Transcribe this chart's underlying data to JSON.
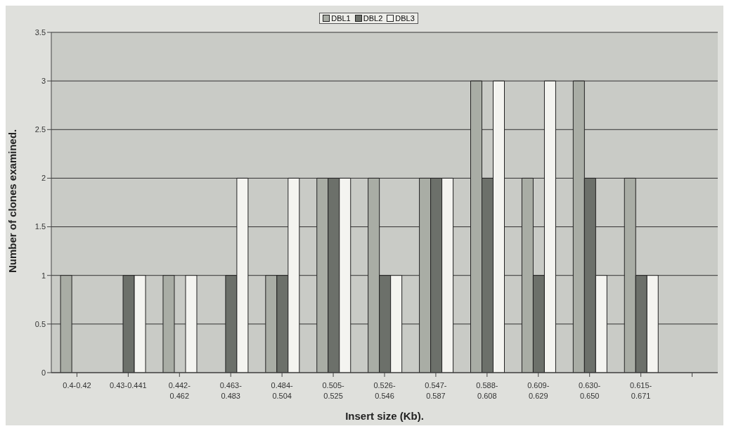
{
  "chart_data": {
    "type": "bar",
    "xlabel": "Insert size (Kb).",
    "ylabel": "Number of clones examined.",
    "categories": [
      "0.4-0.42",
      "0.43-0.441",
      "0.442-0.462",
      "0.463-0.483",
      "0.484-0.504",
      "0.505-0.525",
      "0.526-0.546",
      "0.547-0.587",
      "0.588-0.608",
      "0.609-0.629",
      "0.630-0.650",
      "0.615-0.671",
      null
    ],
    "series": [
      {
        "name": "DBL1",
        "color": "#a9ada5",
        "values": [
          1,
          0,
          1,
          0,
          1,
          2,
          2,
          2,
          3,
          2,
          3,
          2,
          null
        ]
      },
      {
        "name": "DBL2",
        "color": "#6c706a",
        "values": [
          0,
          1,
          0,
          1,
          1,
          2,
          1,
          2,
          2,
          1,
          2,
          1,
          null
        ]
      },
      {
        "name": "DBL3",
        "color": "#f4f4f0",
        "values": [
          0,
          1,
          1,
          2,
          2,
          2,
          1,
          2,
          3,
          3,
          1,
          1,
          null
        ]
      }
    ],
    "ylim": [
      0,
      3.5
    ],
    "yticks": [
      0,
      0.5,
      1,
      1.5,
      2,
      2.5,
      3,
      3.5
    ],
    "grid": "y",
    "legend": "top"
  }
}
